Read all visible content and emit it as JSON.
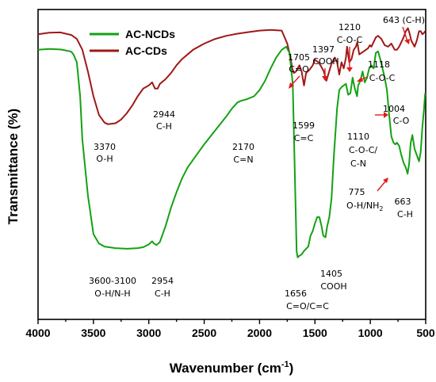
{
  "chart_data": {
    "type": "line",
    "xlabel": "Wavenumber (cm",
    "xlabel_sup": "-1",
    "xlabel_close": ")",
    "ylabel": "Transmittance (%)",
    "xlim": [
      4000,
      500
    ],
    "x_reversed": true,
    "xticks": [
      4000,
      3500,
      3000,
      2500,
      2000,
      1500,
      1000,
      500
    ],
    "yticks_shown": false,
    "legend": {
      "placement": "top-left"
    },
    "colors": {
      "AC-NCDs": "#14a114",
      "AC-CDs": "#a01818",
      "arrow": "#e01b1b"
    },
    "series": [
      {
        "name": "AC-CDs",
        "x": [
          4000,
          3900,
          3800,
          3750,
          3700,
          3650,
          3600,
          3550,
          3500,
          3450,
          3400,
          3370,
          3300,
          3250,
          3200,
          3150,
          3100,
          3050,
          3000,
          2970,
          2944,
          2920,
          2900,
          2850,
          2800,
          2750,
          2700,
          2650,
          2600,
          2500,
          2400,
          2300,
          2200,
          2100,
          2000,
          1900,
          1800,
          1750,
          1720,
          1705,
          1690,
          1670,
          1640,
          1620,
          1599,
          1580,
          1550,
          1520,
          1500,
          1470,
          1450,
          1420,
          1397,
          1380,
          1350,
          1320,
          1300,
          1280,
          1260,
          1240,
          1220,
          1210,
          1190,
          1170,
          1150,
          1130,
          1118,
          1100,
          1080,
          1060,
          1040,
          1020,
          1004,
          990,
          970,
          950,
          930,
          900,
          870,
          840,
          810,
          780,
          760,
          740,
          720,
          700,
          680,
          660,
          643,
          630,
          615,
          600,
          580,
          560,
          545,
          530,
          515,
          505
        ],
        "y": [
          92,
          92.5,
          92.6,
          92.2,
          91.8,
          90.5,
          87,
          80,
          72,
          66,
          63.5,
          63,
          63.3,
          64.5,
          66.5,
          69,
          72,
          74.5,
          75.5,
          76.5,
          74.5,
          74.5,
          76,
          77.5,
          79.5,
          82,
          84,
          85.5,
          87,
          89,
          90.5,
          91.5,
          92.2,
          92.7,
          93.2,
          93.4,
          93.2,
          89,
          84.5,
          81,
          79.5,
          80,
          82,
          80,
          75.5,
          79.5,
          80.5,
          82,
          83.8,
          83,
          82,
          80,
          77,
          79,
          82.5,
          84.5,
          83,
          79,
          83,
          81,
          84.5,
          88,
          83,
          84,
          87,
          88,
          89.5,
          85.5,
          86,
          86.5,
          87,
          87.5,
          88.5,
          88,
          89.5,
          91,
          91.5,
          90.5,
          88.5,
          88,
          89,
          87,
          87,
          88,
          89.5,
          91,
          93,
          94,
          92,
          90,
          89,
          88,
          90,
          93,
          93,
          92,
          92.5,
          93
        ]
      },
      {
        "name": "AC-NCDs",
        "x": [
          4000,
          3900,
          3800,
          3750,
          3700,
          3680,
          3650,
          3620,
          3600,
          3550,
          3500,
          3450,
          3400,
          3300,
          3200,
          3100,
          3050,
          3000,
          2970,
          2954,
          2930,
          2900,
          2850,
          2800,
          2750,
          2700,
          2650,
          2600,
          2500,
          2400,
          2300,
          2250,
          2200,
          2170,
          2120,
          2050,
          2000,
          1950,
          1900,
          1850,
          1800,
          1760,
          1730,
          1700,
          1680,
          1665,
          1656,
          1640,
          1620,
          1600,
          1580,
          1560,
          1540,
          1520,
          1500,
          1480,
          1460,
          1440,
          1425,
          1405,
          1390,
          1370,
          1350,
          1330,
          1300,
          1280,
          1260,
          1240,
          1220,
          1200,
          1180,
          1160,
          1140,
          1120,
          1110,
          1090,
          1070,
          1050,
          1030,
          1010,
          990,
          970,
          950,
          930,
          910,
          890,
          870,
          850,
          830,
          810,
          790,
          775,
          760,
          740,
          720,
          700,
          680,
          663,
          650,
          635,
          620,
          600,
          580,
          560,
          545,
          530,
          515,
          505
        ],
        "y": [
          87,
          87.3,
          87.1,
          86.8,
          86.4,
          85.5,
          83,
          72,
          58,
          40,
          27.5,
          24.5,
          23.5,
          23,
          22.8,
          23,
          23.3,
          24.2,
          25.2,
          24.5,
          24,
          25,
          30,
          36,
          41,
          45.5,
          49,
          51.5,
          56.5,
          61,
          65.5,
          68,
          70,
          70.5,
          71,
          72,
          74,
          77,
          81,
          84.5,
          87,
          88,
          86,
          76,
          45,
          22,
          20,
          20.5,
          21,
          22,
          22.8,
          23.5,
          27,
          28.5,
          31,
          33,
          33,
          30,
          27,
          26.5,
          30,
          33,
          39,
          52,
          68,
          74,
          75,
          75.5,
          76,
          72.5,
          73,
          78,
          74.5,
          72,
          75.5,
          77,
          80,
          76.5,
          78,
          81,
          82,
          81,
          86,
          86.5,
          84,
          81,
          78,
          74,
          66,
          59,
          57,
          56.5,
          57,
          56,
          53,
          50.5,
          49,
          47,
          50,
          57,
          59.5,
          55,
          53,
          51,
          54,
          62,
          68,
          73
        ]
      }
    ],
    "annotations": {
      "a3370_num": "3370",
      "a3370_txt": "O-H",
      "a2944_num": "2944",
      "a2944_txt": "C-H",
      "a1705_num": "1705",
      "a1705_txt": "C=O",
      "a1397_num": "1397",
      "a1397_txt": "COOH",
      "a1210_num": "1210",
      "a1210_txt": "C-O-C",
      "a643": "643 (C-H)",
      "a1118_num": "1118",
      "a1118_txt": "C-O-C",
      "a1599_num": "1599",
      "a1599_txt": "C=C",
      "a2170_num": "2170",
      "a2170_txt": "C=N",
      "a1004_num": "1004",
      "a1004_txt": "C-O",
      "a1110_num": "1110",
      "a1110_txt1": "C-O-C/",
      "a1110_txt2": "C-N",
      "a775_num": "775",
      "a775_txt": "O-H/NH",
      "a775_sub": "2",
      "a663_num": "663",
      "a663_txt": "C-H",
      "a3600_num": "3600-3100",
      "a3600_txt": "O-H/N-H",
      "a2954_num": "2954",
      "a2954_txt": "C-H",
      "a1656_num": "1656",
      "a1656_txt": "C=O/C=C",
      "a1405_num": "1405",
      "a1405_txt": "COOH"
    }
  }
}
